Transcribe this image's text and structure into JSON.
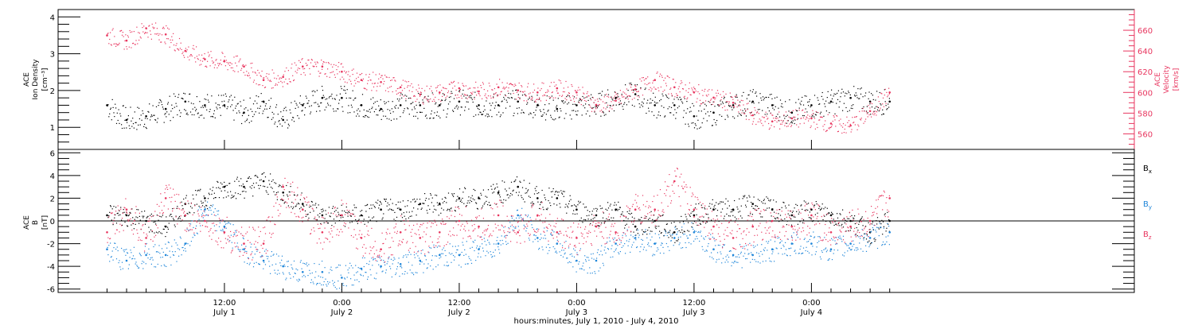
{
  "chart_data": [
    {
      "type": "scatter",
      "panel": "top",
      "ylabel_lines": [
        "ACE",
        "Ion Density"
      ],
      "yunit": "[cm⁻³]",
      "y2label_lines": [
        "ACE",
        "Velocity"
      ],
      "y2unit": "[km/s]",
      "ylim": [
        0.4,
        4.2
      ],
      "yticks": [
        1,
        2,
        3,
        4
      ],
      "y2lim": [
        545,
        680
      ],
      "y2ticks": [
        560,
        580,
        600,
        620,
        640,
        660
      ],
      "colors": {
        "density": "#000000",
        "velocity": "#e8365f",
        "y2axis": "#e8365f"
      },
      "series": [
        {
          "key": "density",
          "color": "#000000",
          "axis": "left",
          "x": [
            0,
            2,
            4,
            6,
            8,
            10,
            12,
            14,
            16,
            18,
            20,
            22,
            24,
            26,
            28,
            30,
            32,
            34,
            36,
            38,
            40,
            42,
            44,
            46,
            48,
            50,
            52,
            54,
            56,
            58,
            60,
            62,
            64,
            66,
            68,
            70,
            72,
            74,
            76,
            78,
            80
          ],
          "y": [
            1.6,
            1.2,
            1.3,
            1.5,
            1.7,
            1.6,
            1.6,
            1.4,
            1.7,
            1.2,
            1.6,
            1.8,
            1.8,
            1.6,
            1.5,
            1.6,
            1.6,
            1.6,
            1.7,
            1.6,
            1.6,
            1.7,
            1.6,
            1.5,
            1.6,
            1.6,
            1.8,
            1.9,
            1.6,
            1.6,
            1.3,
            1.4,
            1.6,
            1.7,
            1.6,
            1.4,
            1.6,
            1.7,
            1.8,
            1.7,
            1.7
          ]
        },
        {
          "key": "velocity",
          "color": "#e8365f",
          "axis": "right",
          "x": [
            0,
            2,
            4,
            6,
            8,
            10,
            12,
            14,
            16,
            18,
            20,
            22,
            24,
            26,
            28,
            30,
            32,
            34,
            36,
            38,
            40,
            42,
            44,
            46,
            48,
            50,
            52,
            54,
            56,
            58,
            60,
            62,
            64,
            66,
            68,
            70,
            72,
            74,
            76,
            78,
            80
          ],
          "y": [
            655,
            650,
            662,
            656,
            640,
            632,
            630,
            625,
            612,
            615,
            625,
            625,
            620,
            612,
            610,
            605,
            598,
            600,
            604,
            601,
            605,
            602,
            600,
            604,
            600,
            588,
            592,
            603,
            612,
            605,
            600,
            595,
            590,
            578,
            572,
            575,
            575,
            570,
            568,
            582,
            600
          ]
        }
      ]
    },
    {
      "type": "scatter",
      "panel": "bottom",
      "ylabel_lines": [
        "ACE",
        "B"
      ],
      "yunit": "[nT]",
      "ylim": [
        -6.3,
        6.3
      ],
      "yticks": [
        -6,
        -4,
        -2,
        0,
        2,
        4,
        6
      ],
      "colors": {
        "Bx": "#000000",
        "By": "#1f86d9",
        "Bz": "#e8365f"
      },
      "series": [
        {
          "name": "B",
          "sub": "x",
          "color": "#000000",
          "x": [
            0,
            2,
            4,
            6,
            8,
            10,
            12,
            14,
            16,
            18,
            20,
            22,
            24,
            26,
            28,
            30,
            32,
            34,
            36,
            38,
            40,
            42,
            44,
            46,
            48,
            50,
            52,
            54,
            56,
            58,
            60,
            62,
            64,
            66,
            68,
            70,
            72,
            74,
            76,
            78,
            80
          ],
          "y": [
            0.5,
            0.5,
            0.0,
            -0.5,
            1.5,
            2.0,
            3.0,
            3.0,
            3.5,
            2.5,
            1.5,
            0.5,
            0.5,
            0.5,
            1.0,
            1.0,
            1.5,
            1.5,
            2.0,
            2.0,
            2.5,
            3.0,
            2.0,
            2.0,
            1.0,
            0.5,
            1.0,
            -0.5,
            0.0,
            -1.0,
            0.5,
            1.0,
            1.0,
            1.5,
            1.0,
            0.5,
            1.0,
            0.5,
            0.0,
            -1.0,
            0.0
          ]
        },
        {
          "name": "B",
          "sub": "y",
          "color": "#1f86d9",
          "x": [
            0,
            2,
            4,
            6,
            8,
            10,
            12,
            14,
            16,
            18,
            20,
            22,
            24,
            26,
            28,
            30,
            32,
            34,
            36,
            38,
            40,
            42,
            44,
            46,
            48,
            50,
            52,
            54,
            56,
            58,
            60,
            62,
            64,
            66,
            68,
            70,
            72,
            74,
            76,
            78,
            80
          ],
          "y": [
            -2.5,
            -3.5,
            -3.0,
            -3.0,
            -2.0,
            1.0,
            -0.5,
            -2.5,
            -3.5,
            -4.0,
            -4.5,
            -4.5,
            -5.0,
            -4.2,
            -4.0,
            -3.8,
            -3.5,
            -3.0,
            -3.0,
            -2.5,
            -2.0,
            0.5,
            -1.5,
            -2.0,
            -3.5,
            -3.5,
            -2.0,
            -1.5,
            -2.0,
            -1.5,
            -1.0,
            -2.5,
            -3.0,
            -3.0,
            -2.5,
            -2.0,
            -2.0,
            -2.5,
            -2.0,
            -1.5,
            -1.0
          ]
        },
        {
          "name": "B",
          "sub": "z",
          "color": "#e8365f",
          "x": [
            0,
            2,
            4,
            6,
            8,
            10,
            12,
            14,
            16,
            18,
            20,
            22,
            24,
            26,
            28,
            30,
            32,
            34,
            36,
            38,
            40,
            42,
            44,
            46,
            48,
            50,
            52,
            54,
            56,
            58,
            60,
            62,
            64,
            66,
            68,
            70,
            72,
            74,
            76,
            78,
            80
          ],
          "y": [
            -1.0,
            1.0,
            -1.5,
            2.0,
            0.5,
            0.0,
            -1.0,
            -2.0,
            -2.0,
            3.0,
            1.0,
            -1.0,
            0.5,
            -1.5,
            -2.5,
            -1.0,
            -1.5,
            -1.0,
            0.0,
            -0.5,
            0.5,
            -1.0,
            0.5,
            -1.0,
            -1.5,
            -0.5,
            -1.0,
            1.0,
            1.0,
            3.5,
            1.0,
            -0.5,
            -1.5,
            -0.5,
            0.0,
            -0.5,
            0.5,
            -1.0,
            -0.5,
            0.0,
            2.0
          ]
        }
      ]
    }
  ],
  "x_axis": {
    "xlim": [
      -5,
      105
    ],
    "ticks": [
      {
        "x": 12,
        "time": "12:00",
        "day": "July 1"
      },
      {
        "x": 24,
        "time": "0:00",
        "day": "July 2"
      },
      {
        "x": 36,
        "time": "12:00",
        "day": "July 2"
      },
      {
        "x": 48,
        "time": "0:00",
        "day": "July 3"
      },
      {
        "x": 60,
        "time": "12:00",
        "day": "July 3"
      },
      {
        "x": 72,
        "time": "0:00",
        "day": "July 4"
      }
    ],
    "xlabel": "hours:minutes, July  1, 2010 - July  4, 2010"
  }
}
